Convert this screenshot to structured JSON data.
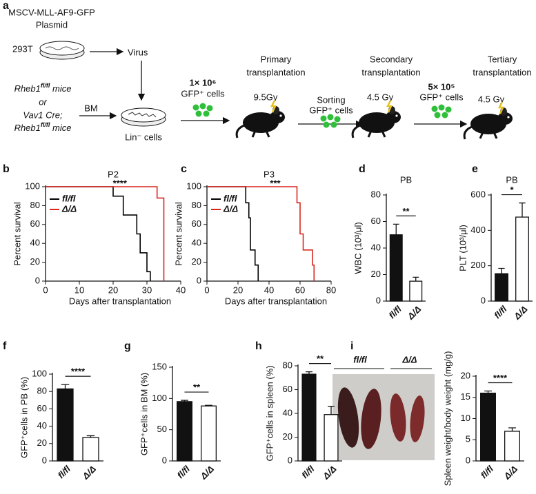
{
  "diagram": {
    "panel": "a",
    "plasmid": [
      "MSCV-MLL-AF9-GFP",
      "Plasmid"
    ],
    "cell_line": "293T",
    "virus": "Virus",
    "mice_1": [
      "Rheb1",
      "fl/fl",
      " mice"
    ],
    "or": "or",
    "mice_2": "Vav1 Cre;",
    "mice_3": [
      "Rheb1",
      "fl/fl",
      " mice"
    ],
    "bm": "BM",
    "lin": "Lin⁻ cells",
    "dose_1": [
      "1× 10⁶",
      "GFP⁺ cells"
    ],
    "sorting": [
      "Sorting",
      "GFP⁺ cells"
    ],
    "dose_2": [
      "5× 10⁵",
      "GFP⁺ cells"
    ],
    "stages": [
      [
        "Primary",
        "transplantation"
      ],
      [
        "Secondary",
        "transplantation"
      ],
      [
        "Tertiary",
        "transplantation"
      ]
    ],
    "irradiation": [
      "9.5Gy",
      "4.5 Gy",
      "4.5 Gy"
    ]
  },
  "photo": {
    "labels": [
      "fl/fl",
      "Δ/Δ"
    ]
  },
  "chart_data": [
    {
      "type": "survival",
      "panel": "b",
      "title": "P2",
      "significance": "****",
      "xlabel": "Days after transplantation",
      "ylabel": "Percent survival",
      "xlim": [
        0,
        40
      ],
      "xticks": [
        0,
        10,
        20,
        30,
        40
      ],
      "ylim": [
        0,
        100
      ],
      "yticks": [
        0,
        20,
        40,
        60,
        80,
        100
      ],
      "series": [
        {
          "name": "fl/fl",
          "color": "#000000",
          "x": [
            0,
            20,
            23,
            27,
            28,
            30,
            31
          ],
          "values": [
            100,
            90,
            70,
            50,
            30,
            10,
            0
          ]
        },
        {
          "name": "Δ/Δ",
          "color": "#d7261e",
          "x": [
            0,
            33,
            35
          ],
          "values": [
            100,
            88,
            0
          ]
        }
      ]
    },
    {
      "type": "survival",
      "panel": "c",
      "title": "P3",
      "significance": "***",
      "xlabel": "Days after transplantation",
      "ylabel": "Percent survival",
      "xlim": [
        0,
        80
      ],
      "xticks": [
        0,
        20,
        40,
        60,
        80
      ],
      "ylim": [
        0,
        100
      ],
      "yticks": [
        0,
        20,
        40,
        60,
        80,
        100
      ],
      "series": [
        {
          "name": "fl/fl",
          "color": "#000000",
          "x": [
            0,
            25,
            27,
            28,
            31,
            33
          ],
          "values": [
            100,
            83,
            67,
            33,
            17,
            0
          ]
        },
        {
          "name": "Δ/Δ",
          "color": "#d7261e",
          "x": [
            0,
            58,
            60,
            62,
            68,
            69
          ],
          "values": [
            100,
            83,
            50,
            33,
            17,
            0
          ]
        }
      ]
    },
    {
      "type": "bar",
      "panel": "d",
      "title": "PB",
      "ylabel": "WBC (10³/μl)",
      "significance": "**",
      "categories": [
        "fl/fl",
        "Δ/Δ"
      ],
      "values": [
        50,
        15
      ],
      "errors": [
        8,
        3
      ],
      "colors": [
        "#111111",
        "#ffffff"
      ],
      "ylim": [
        0,
        80
      ],
      "yticks": [
        0,
        20,
        40,
        60,
        80
      ]
    },
    {
      "type": "bar",
      "panel": "e",
      "title": "PB",
      "ylabel": "PLT (10³/μl)",
      "significance": "*",
      "categories": [
        "fl/fl",
        "Δ/Δ"
      ],
      "values": [
        155,
        475
      ],
      "errors": [
        30,
        80
      ],
      "colors": [
        "#111111",
        "#ffffff"
      ],
      "ylim": [
        0,
        600
      ],
      "yticks": [
        0,
        200,
        400,
        600
      ]
    },
    {
      "type": "bar",
      "panel": "f",
      "ylabel": "GFP⁺cells in PB (%)",
      "significance": "****",
      "categories": [
        "fl/fl",
        "Δ/Δ"
      ],
      "values": [
        83,
        27
      ],
      "errors": [
        5,
        2
      ],
      "colors": [
        "#111111",
        "#ffffff"
      ],
      "ylim": [
        0,
        100
      ],
      "yticks": [
        0,
        20,
        40,
        60,
        80,
        100
      ]
    },
    {
      "type": "bar",
      "panel": "g",
      "ylabel": "GFP⁺cells in BM (%)",
      "significance": "**",
      "categories": [
        "fl/fl",
        "Δ/Δ"
      ],
      "values": [
        95,
        88
      ],
      "errors": [
        2,
        1
      ],
      "colors": [
        "#111111",
        "#ffffff"
      ],
      "ylim": [
        0,
        150
      ],
      "yticks": [
        0,
        50,
        100,
        150
      ]
    },
    {
      "type": "bar",
      "panel": "h",
      "ylabel": "GFP⁺cells in spleen (%)",
      "significance": "**",
      "categories": [
        "fl/fl",
        "Δ/Δ"
      ],
      "values": [
        73,
        39
      ],
      "errors": [
        2,
        7
      ],
      "colors": [
        "#111111",
        "#ffffff"
      ],
      "ylim": [
        0,
        80
      ],
      "yticks": [
        0,
        20,
        40,
        60,
        80
      ]
    },
    {
      "type": "bar",
      "panel": "i",
      "ylabel": "Spleen weight/body weight (mg/g)",
      "significance": "****",
      "categories": [
        "fl/fl",
        "Δ/Δ"
      ],
      "values": [
        16,
        7
      ],
      "errors": [
        0.5,
        0.8
      ],
      "colors": [
        "#111111",
        "#ffffff"
      ],
      "ylim": [
        0,
        20
      ],
      "yticks": [
        0,
        5,
        10,
        15,
        20
      ]
    }
  ]
}
